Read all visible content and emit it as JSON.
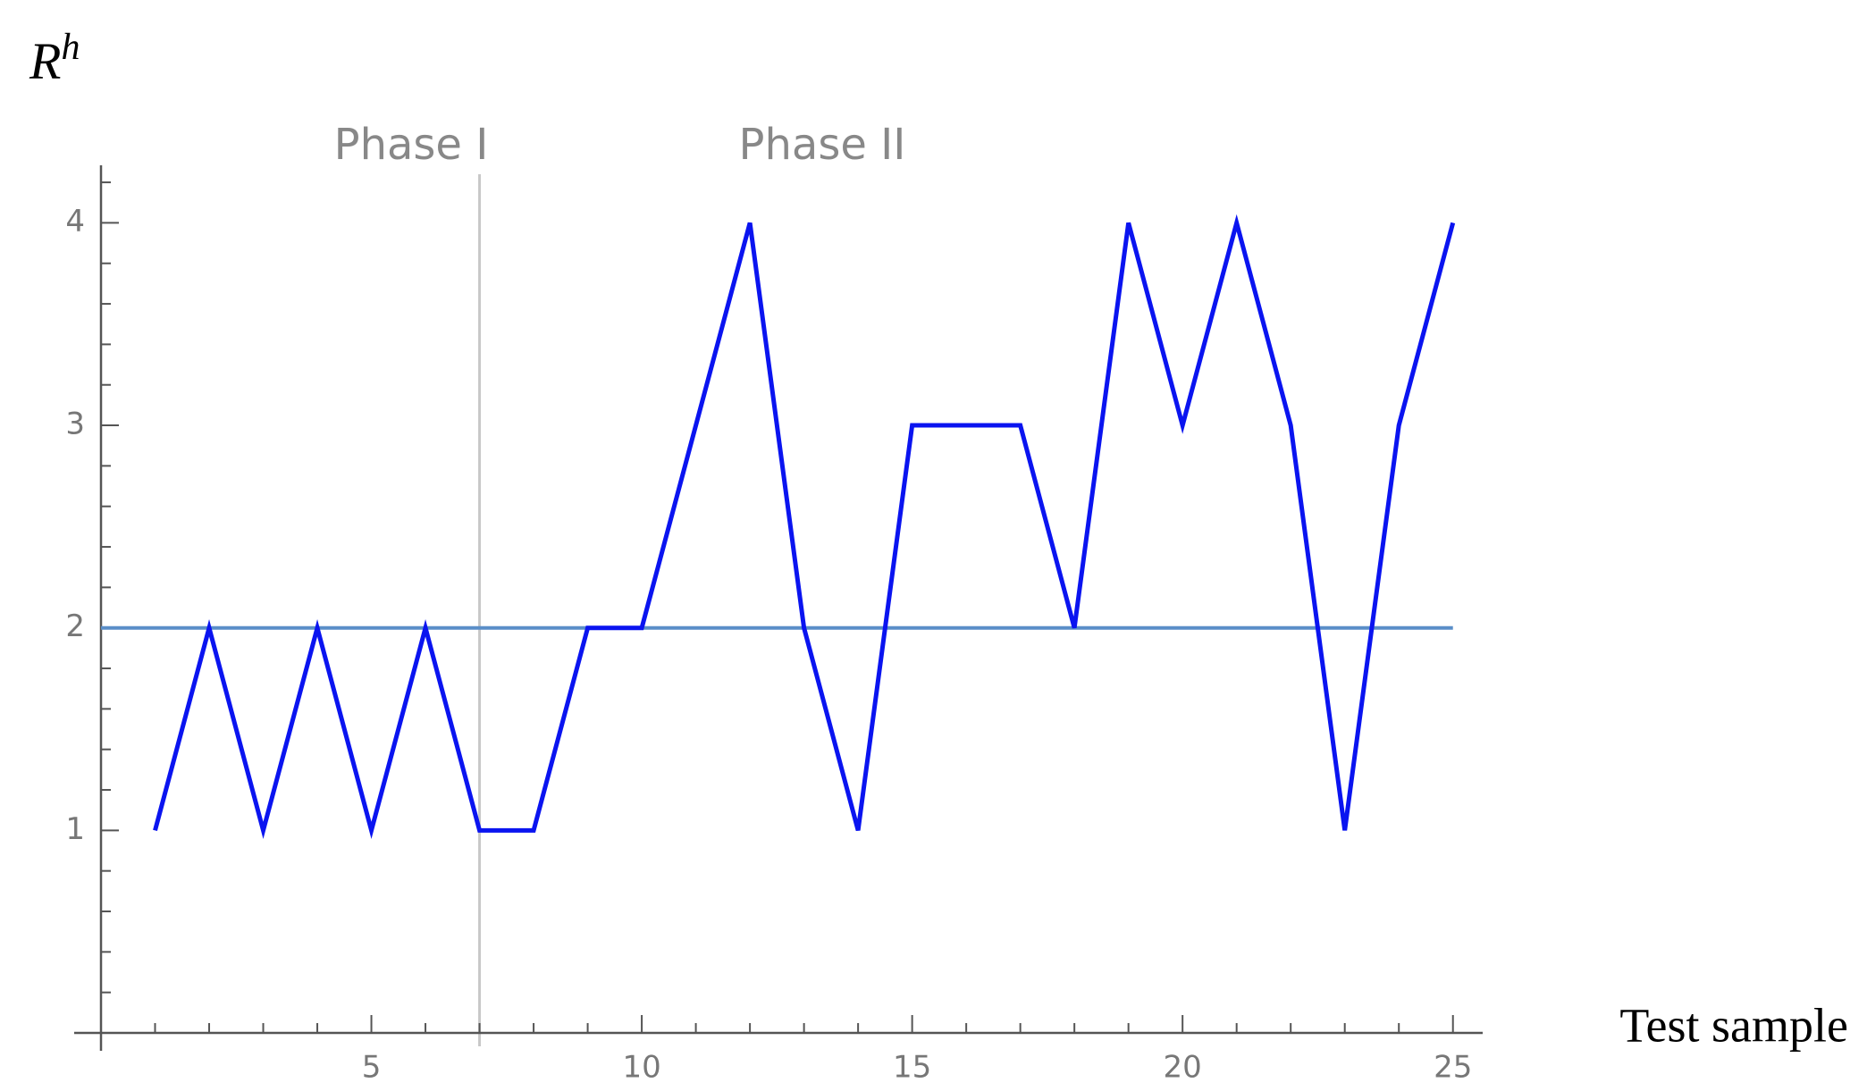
{
  "chart_data": {
    "type": "line",
    "y_label": {
      "base": "R",
      "superscript": "h"
    },
    "x_label": "Test sample",
    "annotations": [
      "Phase I",
      "Phase II"
    ],
    "x": [
      1,
      2,
      3,
      4,
      5,
      6,
      7,
      8,
      9,
      10,
      11,
      12,
      13,
      14,
      15,
      16,
      17,
      18,
      19,
      20,
      21,
      22,
      23,
      24,
      25
    ],
    "series": [
      {
        "name": "R^h",
        "color": "#0a14f0",
        "values": [
          1,
          2,
          1,
          2,
          1,
          2,
          1,
          1,
          2,
          2,
          3,
          4,
          2,
          1,
          3,
          3,
          3,
          2,
          4,
          3,
          4,
          3,
          1,
          3,
          4
        ]
      }
    ],
    "threshold": {
      "value": 2,
      "color": "#5a8ec8"
    },
    "phase_boundary": {
      "value": 7,
      "color": "#c8c8c8"
    },
    "xlim": [
      0,
      25.55
    ],
    "ylim": [
      0,
      4.24
    ],
    "xticks": [
      5,
      10,
      15,
      20,
      25
    ],
    "yticks": [
      1,
      2,
      3,
      4
    ],
    "xminor_ticks": [
      1,
      2,
      3,
      4,
      6,
      7,
      8,
      9,
      11,
      12,
      13,
      14,
      16,
      17,
      18,
      19,
      21,
      22,
      23,
      24
    ],
    "yminor_ticks": [
      0.2,
      0.4,
      0.6,
      0.8,
      1.2,
      1.4,
      1.6,
      1.8,
      2.2,
      2.4,
      2.6,
      2.8,
      3.2,
      3.4,
      3.6,
      3.8,
      4.2
    ]
  }
}
